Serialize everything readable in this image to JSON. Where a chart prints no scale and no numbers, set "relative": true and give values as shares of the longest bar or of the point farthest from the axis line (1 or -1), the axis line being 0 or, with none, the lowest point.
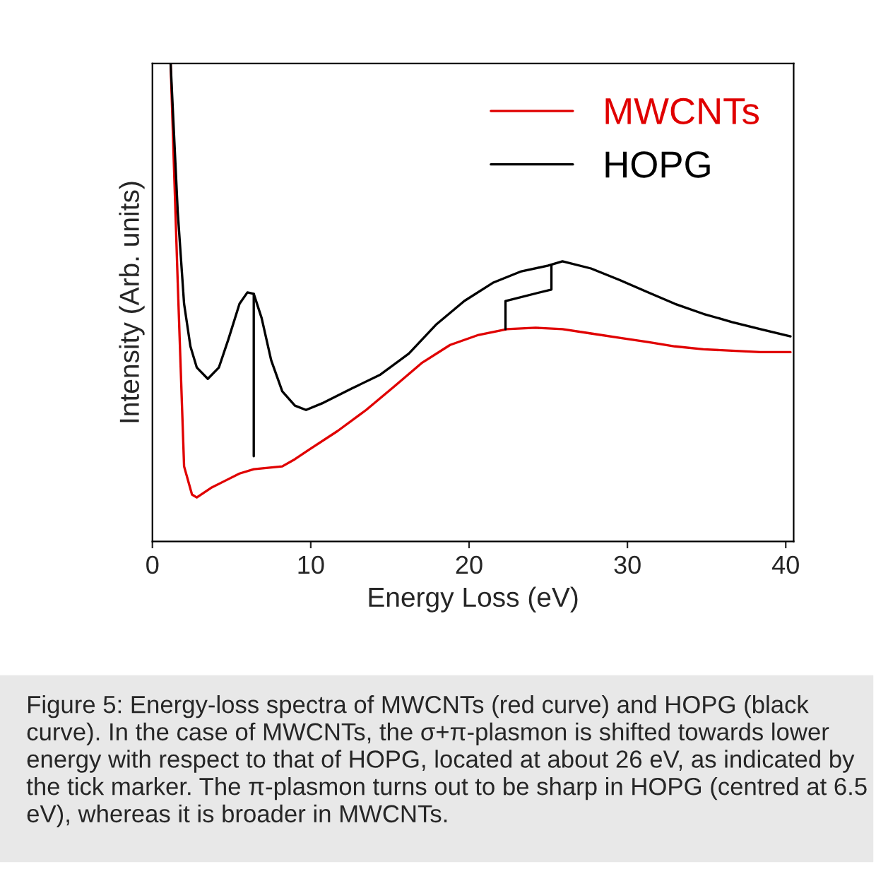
{
  "chart_data": {
    "type": "line",
    "relative": true,
    "xlabel": "Energy Loss (eV)",
    "ylabel": "Intensity (Arb. units)",
    "xlim": [
      0,
      40.5
    ],
    "xticks": [
      0,
      10,
      20,
      30,
      40
    ],
    "legend": "top right",
    "grid": false,
    "series": [
      {
        "name": "MWCNTs",
        "color": "#e00000",
        "x": [
          1.15,
          1.6,
          2.0,
          2.5,
          2.8,
          3.7,
          4.6,
          5.5,
          6.4,
          7.3,
          8.2,
          9.0,
          9.9,
          11.7,
          13.5,
          15.3,
          17.0,
          18.8,
          20.6,
          22.4,
          24.2,
          25.9,
          27.7,
          29.5,
          31.3,
          33.0,
          34.8,
          36.6,
          38.4,
          40.3
        ],
        "values": [
          1.0,
          0.54,
          0.157,
          0.098,
          0.092,
          0.112,
          0.127,
          0.142,
          0.151,
          0.154,
          0.157,
          0.172,
          0.192,
          0.231,
          0.275,
          0.325,
          0.373,
          0.411,
          0.432,
          0.444,
          0.447,
          0.444,
          0.435,
          0.426,
          0.417,
          0.408,
          0.402,
          0.399,
          0.396,
          0.396
        ]
      },
      {
        "name": "HOPG",
        "color": "#000000",
        "x": [
          1.15,
          1.6,
          2.0,
          2.4,
          2.8,
          3.5,
          4.2,
          4.8,
          5.5,
          6.0,
          6.4,
          6.9,
          7.5,
          8.2,
          9.0,
          9.7,
          10.8,
          12.6,
          14.4,
          16.2,
          17.9,
          19.7,
          21.5,
          23.3,
          25.0,
          25.9,
          27.7,
          29.5,
          31.3,
          33.0,
          34.8,
          36.6,
          38.4,
          40.3
        ],
        "values": [
          1.0,
          0.689,
          0.497,
          0.408,
          0.364,
          0.34,
          0.364,
          0.423,
          0.497,
          0.521,
          0.518,
          0.467,
          0.379,
          0.314,
          0.284,
          0.275,
          0.29,
          0.32,
          0.349,
          0.393,
          0.453,
          0.503,
          0.541,
          0.565,
          0.577,
          0.586,
          0.571,
          0.547,
          0.521,
          0.497,
          0.476,
          0.459,
          0.444,
          0.429
        ]
      },
      {
        "type": "line",
        "color": "#000000",
        "x": [
          6.4,
          6.4
        ],
        "values": [
          0.518,
          0.178
        ]
      },
      {
        "type": "line",
        "color": "#000000",
        "x": [
          22.3,
          22.3,
          25.2,
          25.2
        ],
        "values": [
          0.444,
          0.503,
          0.527,
          0.577
        ]
      }
    ],
    "annotations": [
      "Figure 5: Energy-loss spectra of MWCNTs (red curve) and HOPG (black curve). In the case of MWCNTs, the σ+π-plasmon is shifted towards lower energy with respect to that of HOPG, located at about 26 eV, as indicated by the tick marker. The π-plasmon turns out to be sharp in HOPG (centred at 6.5 eV), whereas it is broader in MWCNTs."
    ]
  }
}
